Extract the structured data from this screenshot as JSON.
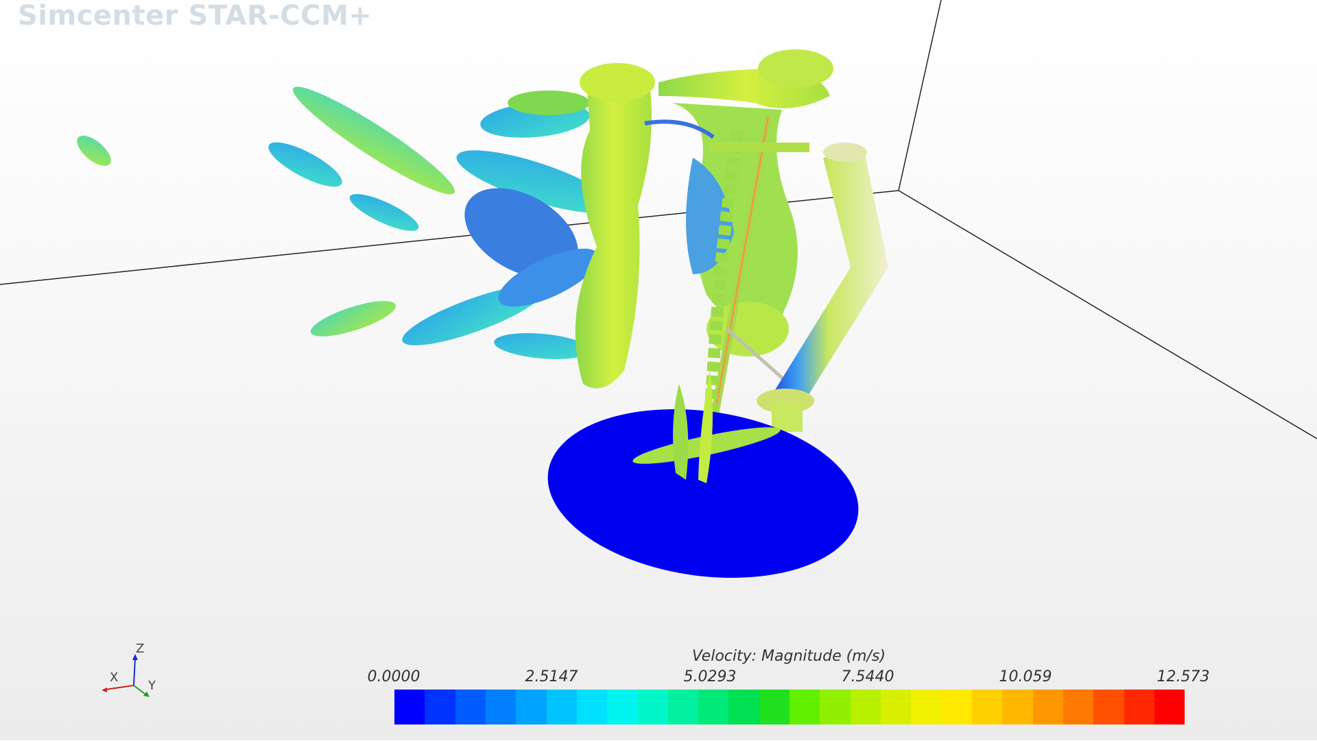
{
  "app": {
    "watermark": "Simcenter STAR-CCM+"
  },
  "legend": {
    "title": "Velocity: Magnitude (m/s)",
    "ticks": [
      "0.0000",
      "2.5147",
      "5.0293",
      "7.5440",
      "10.059",
      "12.573"
    ],
    "min": 0.0,
    "max": 12.573,
    "colors": [
      "#0000ff",
      "#0033ff",
      "#005cff",
      "#0080ff",
      "#00a3ff",
      "#00c4ff",
      "#00e0ff",
      "#00f5f0",
      "#00f5c8",
      "#00f0a0",
      "#00e878",
      "#00e050",
      "#20e020",
      "#60f000",
      "#90f000",
      "#b8f000",
      "#d8f000",
      "#f0f000",
      "#ffe800",
      "#ffd000",
      "#ffb800",
      "#ff9800",
      "#ff7800",
      "#ff5000",
      "#ff2800",
      "#ff0000"
    ]
  },
  "triad": {
    "x": "X",
    "y": "Y",
    "z": "Z"
  },
  "colors": {
    "disk": "#0000f0",
    "iso_blue": "#3aa0e8",
    "iso_cyan": "#38d8d0",
    "iso_green": "#7cdc4a",
    "iso_yellow": "#c8ec40"
  }
}
